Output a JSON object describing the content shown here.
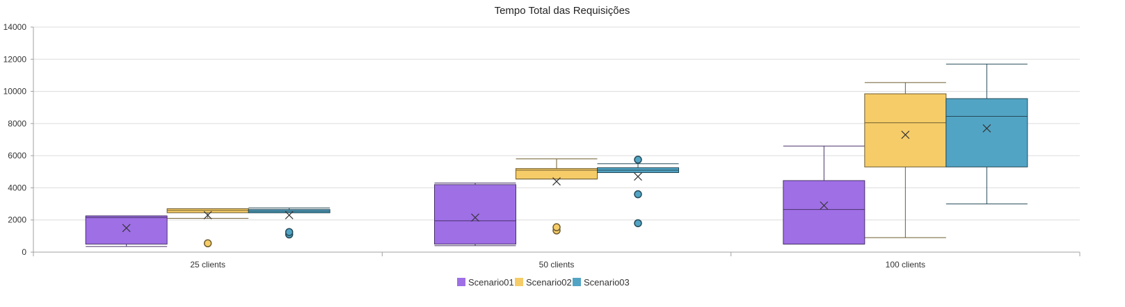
{
  "chart_data": {
    "type": "boxplot",
    "title": "Tempo Total das Requisições",
    "categories": [
      "25 clients",
      "50 clients",
      "100 clients"
    ],
    "ylim": [
      0,
      14000
    ],
    "yticks": [
      0,
      2000,
      4000,
      6000,
      8000,
      10000,
      12000,
      14000
    ],
    "ytick_labels": [
      "0",
      "2000",
      "4000",
      "6000",
      "8000",
      "10000",
      "12000",
      "14000"
    ],
    "grid": true,
    "legend_position": "bottom",
    "series": [
      {
        "name": "Scenario01",
        "color": "#9f6fe6",
        "boxes": [
          {
            "min": 350,
            "q1": 500,
            "median": 2150,
            "q3": 2250,
            "max": 2250,
            "mean": 1500,
            "outliers": []
          },
          {
            "min": 400,
            "q1": 500,
            "median": 1950,
            "q3": 4200,
            "max": 4300,
            "mean": 2150,
            "outliers": []
          },
          {
            "min": 500,
            "q1": 500,
            "median": 2650,
            "q3": 4450,
            "max": 6600,
            "mean": 2900,
            "outliers": []
          }
        ]
      },
      {
        "name": "Scenario02",
        "color": "#f5cc68",
        "boxes": [
          {
            "min": 2100,
            "q1": 2450,
            "median": 2600,
            "q3": 2700,
            "max": 2700,
            "mean": 2300,
            "outliers": [
              550
            ]
          },
          {
            "min": 4550,
            "q1": 4550,
            "median": 5100,
            "q3": 5200,
            "max": 5800,
            "mean": 4400,
            "outliers": [
              1350,
              1550
            ]
          },
          {
            "min": 900,
            "q1": 5300,
            "median": 8050,
            "q3": 9850,
            "max": 10550,
            "mean": 7300,
            "outliers": []
          }
        ]
      },
      {
        "name": "Scenario03",
        "color": "#52a4c4",
        "boxes": [
          {
            "min": 2450,
            "q1": 2450,
            "median": 2550,
            "q3": 2650,
            "max": 2750,
            "mean": 2300,
            "outliers": [
              1100,
              1250
            ]
          },
          {
            "min": 4950,
            "q1": 4950,
            "median": 5100,
            "q3": 5250,
            "max": 5500,
            "mean": 4700,
            "outliers": [
              5750,
              3600,
              1800
            ]
          },
          {
            "min": 3000,
            "q1": 5300,
            "median": 8450,
            "q3": 9550,
            "max": 11700,
            "mean": 7700,
            "outliers": []
          }
        ]
      }
    ]
  }
}
